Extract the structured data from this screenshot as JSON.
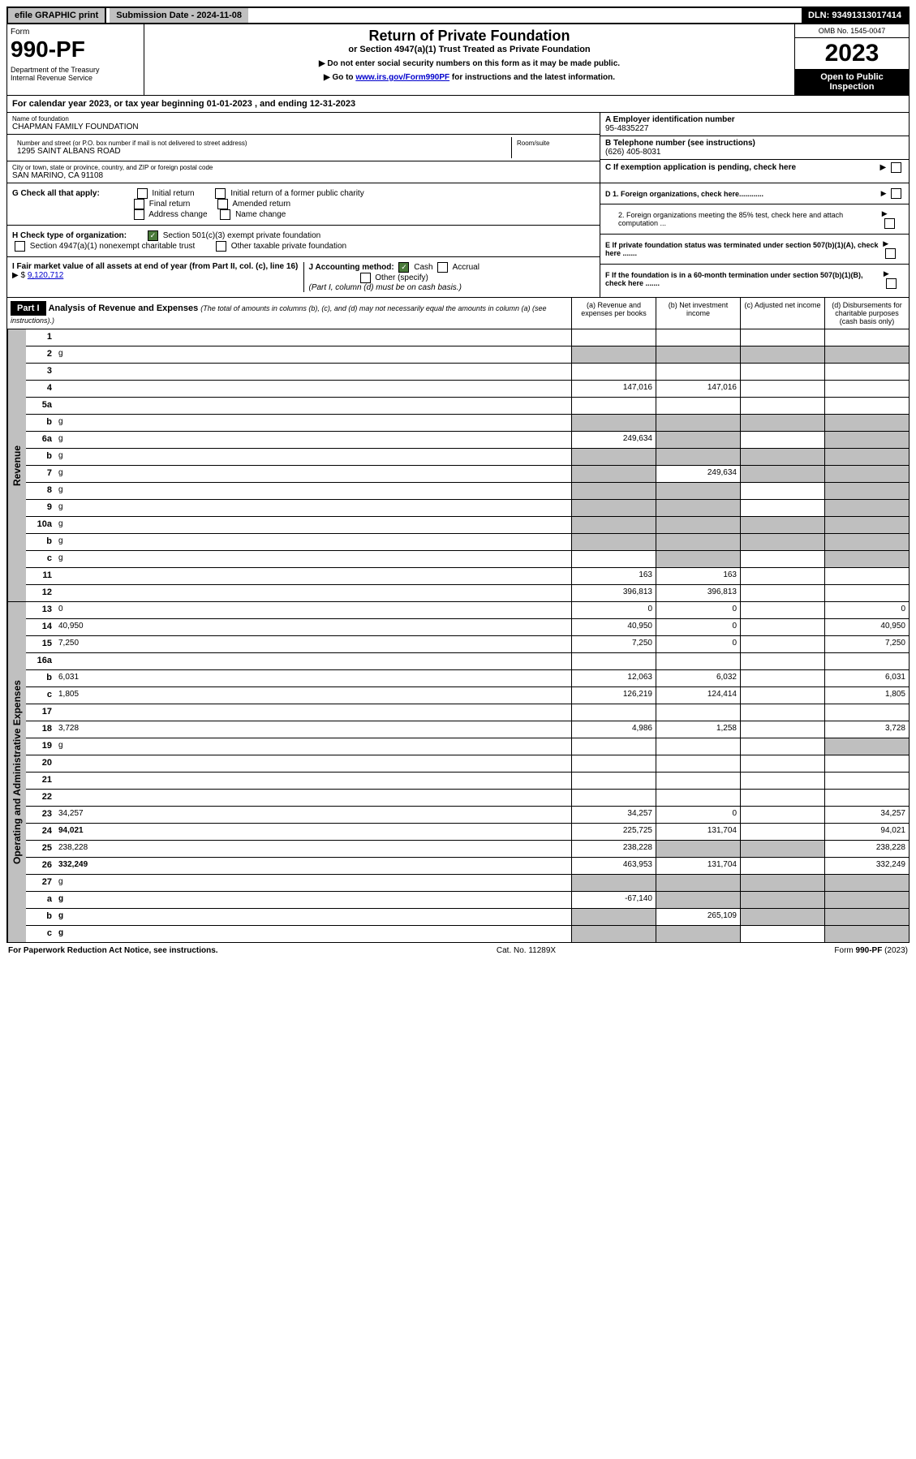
{
  "topbar": {
    "efile": "efile GRAPHIC print",
    "submission": "Submission Date - 2024-11-08",
    "dln": "DLN: 93491313017414"
  },
  "header": {
    "form_label": "Form",
    "form_num": "990-PF",
    "dept": "Department of the Treasury\nInternal Revenue Service",
    "title": "Return of Private Foundation",
    "subtitle": "or Section 4947(a)(1) Trust Treated as Private Foundation",
    "note1": "▶ Do not enter social security numbers on this form as it may be made public.",
    "note2_pre": "▶ Go to ",
    "note2_link": "www.irs.gov/Form990PF",
    "note2_post": " for instructions and the latest information.",
    "omb": "OMB No. 1545-0047",
    "year": "2023",
    "inspect": "Open to Public Inspection"
  },
  "cal_year": "For calendar year 2023, or tax year beginning 01-01-2023                      , and ending 12-31-2023",
  "info": {
    "name_label": "Name of foundation",
    "name": "CHAPMAN FAMILY FOUNDATION",
    "addr_label": "Number and street (or P.O. box number if mail is not delivered to street address)",
    "addr": "1295 SAINT ALBANS ROAD",
    "room_label": "Room/suite",
    "city_label": "City or town, state or province, country, and ZIP or foreign postal code",
    "city": "SAN MARINO, CA  91108",
    "a_label": "A Employer identification number",
    "a_val": "95-4835227",
    "b_label": "B Telephone number (see instructions)",
    "b_val": "(626) 405-8031",
    "c_label": "C If exemption application is pending, check here"
  },
  "g_check": {
    "label": "G Check all that apply:",
    "opts": [
      "Initial return",
      "Initial return of a former public charity",
      "Final return",
      "Amended return",
      "Address change",
      "Name change"
    ]
  },
  "h_check": {
    "label": "H Check type of organization:",
    "opt1": "Section 501(c)(3) exempt private foundation",
    "opt2": "Section 4947(a)(1) nonexempt charitable trust",
    "opt3": "Other taxable private foundation"
  },
  "i_sec": {
    "label": "I Fair market value of all assets at end of year (from Part II, col. (c), line 16)",
    "val": "9,120,712"
  },
  "j_sec": {
    "label": "J Accounting method:",
    "cash": "Cash",
    "accrual": "Accrual",
    "other": "Other (specify)",
    "note": "(Part I, column (d) must be on cash basis.)"
  },
  "right_opts": {
    "d1": "D 1. Foreign organizations, check here............",
    "d2": "2. Foreign organizations meeting the 85% test, check here and attach computation ...",
    "e": "E  If private foundation status was terminated under section 507(b)(1)(A), check here .......",
    "f": "F  If the foundation is in a 60-month termination under section 507(b)(1)(B), check here ......."
  },
  "part1": {
    "label": "Part I",
    "title": "Analysis of Revenue and Expenses",
    "sub": "(The total of amounts in columns (b), (c), and (d) may not necessarily equal the amounts in column (a) (see instructions).)",
    "col_a": "(a) Revenue and expenses per books",
    "col_b": "(b) Net investment income",
    "col_c": "(c) Adjusted net income",
    "col_d": "(d) Disbursements for charitable purposes (cash basis only)"
  },
  "side_labels": {
    "revenue": "Revenue",
    "expenses": "Operating and Administrative Expenses"
  },
  "rows": [
    {
      "n": "1",
      "d": "",
      "a": "",
      "b": "",
      "c": ""
    },
    {
      "n": "2",
      "d": "g",
      "a": "g",
      "b": "g",
      "c": "g"
    },
    {
      "n": "3",
      "d": "",
      "a": "",
      "b": "",
      "c": ""
    },
    {
      "n": "4",
      "d": "",
      "a": "147,016",
      "b": "147,016",
      "c": ""
    },
    {
      "n": "5a",
      "d": "",
      "a": "",
      "b": "",
      "c": ""
    },
    {
      "n": "b",
      "d": "g",
      "a": "g",
      "b": "g",
      "c": "g"
    },
    {
      "n": "6a",
      "d": "g",
      "a": "249,634",
      "b": "g",
      "c": ""
    },
    {
      "n": "b",
      "d": "g",
      "a": "g",
      "b": "g",
      "c": "g"
    },
    {
      "n": "7",
      "d": "g",
      "a": "g",
      "b": "249,634",
      "c": "g"
    },
    {
      "n": "8",
      "d": "g",
      "a": "g",
      "b": "g",
      "c": ""
    },
    {
      "n": "9",
      "d": "g",
      "a": "g",
      "b": "g",
      "c": ""
    },
    {
      "n": "10a",
      "d": "g",
      "a": "g",
      "b": "g",
      "c": "g"
    },
    {
      "n": "b",
      "d": "g",
      "a": "g",
      "b": "g",
      "c": "g"
    },
    {
      "n": "c",
      "d": "g",
      "a": "",
      "b": "g",
      "c": ""
    },
    {
      "n": "11",
      "d": "",
      "a": "163",
      "b": "163",
      "c": ""
    },
    {
      "n": "12",
      "d": "",
      "a": "396,813",
      "b": "396,813",
      "c": "",
      "bold": true
    }
  ],
  "exp_rows": [
    {
      "n": "13",
      "d": "0",
      "a": "0",
      "b": "0",
      "c": ""
    },
    {
      "n": "14",
      "d": "40,950",
      "a": "40,950",
      "b": "0",
      "c": ""
    },
    {
      "n": "15",
      "d": "7,250",
      "a": "7,250",
      "b": "0",
      "c": ""
    },
    {
      "n": "16a",
      "d": "",
      "a": "",
      "b": "",
      "c": ""
    },
    {
      "n": "b",
      "d": "6,031",
      "a": "12,063",
      "b": "6,032",
      "c": ""
    },
    {
      "n": "c",
      "d": "1,805",
      "a": "126,219",
      "b": "124,414",
      "c": ""
    },
    {
      "n": "17",
      "d": "",
      "a": "",
      "b": "",
      "c": ""
    },
    {
      "n": "18",
      "d": "3,728",
      "a": "4,986",
      "b": "1,258",
      "c": ""
    },
    {
      "n": "19",
      "d": "g",
      "a": "",
      "b": "",
      "c": ""
    },
    {
      "n": "20",
      "d": "",
      "a": "",
      "b": "",
      "c": ""
    },
    {
      "n": "21",
      "d": "",
      "a": "",
      "b": "",
      "c": ""
    },
    {
      "n": "22",
      "d": "",
      "a": "",
      "b": "",
      "c": ""
    },
    {
      "n": "23",
      "d": "34,257",
      "a": "34,257",
      "b": "0",
      "c": ""
    },
    {
      "n": "24",
      "d": "94,021",
      "a": "225,725",
      "b": "131,704",
      "c": "",
      "bold": true
    },
    {
      "n": "25",
      "d": "238,228",
      "a": "238,228",
      "b": "g",
      "c": "g"
    },
    {
      "n": "26",
      "d": "332,249",
      "a": "463,953",
      "b": "131,704",
      "c": "",
      "bold": true
    },
    {
      "n": "27",
      "d": "g",
      "a": "g",
      "b": "g",
      "c": "g"
    },
    {
      "n": "a",
      "d": "g",
      "a": "-67,140",
      "b": "g",
      "c": "g",
      "bold": true
    },
    {
      "n": "b",
      "d": "g",
      "a": "g",
      "b": "265,109",
      "c": "g",
      "bold": true
    },
    {
      "n": "c",
      "d": "g",
      "a": "g",
      "b": "g",
      "c": "",
      "bold": true
    }
  ],
  "footer": {
    "left": "For Paperwork Reduction Act Notice, see instructions.",
    "mid": "Cat. No. 11289X",
    "right": "Form 990-PF (2023)"
  }
}
